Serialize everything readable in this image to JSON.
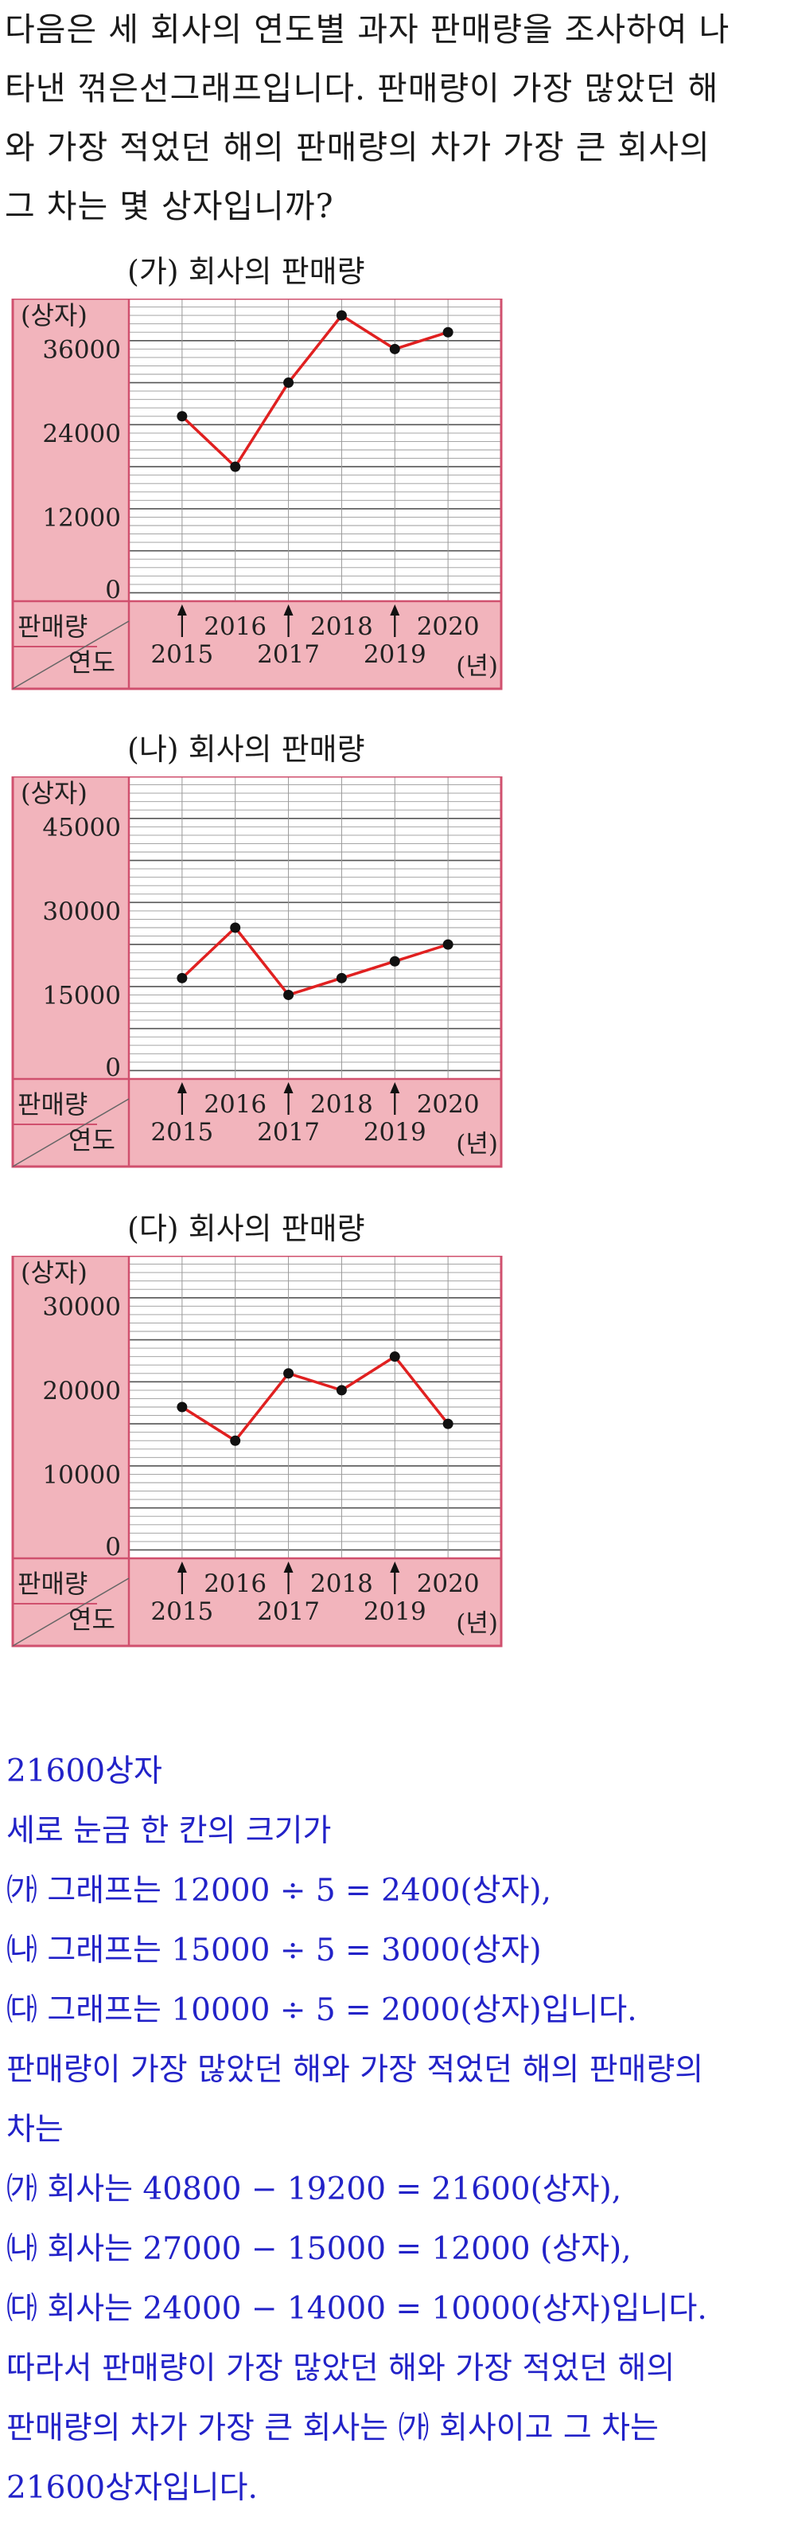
{
  "question": {
    "lines": [
      "다음은 세 회사의 연도별 과자 판매량을 조사하여 나",
      "타낸 꺾은선그래프입니다. 판매량이 가장 많았던 해",
      "와 가장 적었던 해의 판매량의 차가 가장 큰 회사의",
      "그 차는 몇 상자입니까?"
    ]
  },
  "colors": {
    "panel": "#f2b4bc",
    "border": "#d0506e",
    "line": "#e02020",
    "point": "#111111",
    "answer": "#2222c8"
  },
  "chart_data": [
    {
      "type": "line",
      "title": "(가) 회사의 판매량",
      "ylabel": "(상자)",
      "y_ticks": [
        "36000",
        "24000",
        "12000",
        "0"
      ],
      "x_ticks_upper": [
        "2016",
        "2018",
        "2020"
      ],
      "x_ticks_lower": [
        "2015",
        "2017",
        "2019"
      ],
      "row_header": "판매량",
      "col_header": "연도",
      "unit": "(년)",
      "ylim": [
        0,
        43200
      ],
      "x": [
        2015,
        2016,
        2017,
        2018,
        2019,
        2020
      ],
      "values": [
        26400,
        19200,
        31200,
        40800,
        36000,
        38400
      ]
    },
    {
      "type": "line",
      "title": "(나) 회사의 판매량",
      "ylabel": "(상자)",
      "y_ticks": [
        "45000",
        "30000",
        "15000",
        "0"
      ],
      "x_ticks_upper": [
        "2016",
        "2018",
        "2020"
      ],
      "x_ticks_lower": [
        "2015",
        "2017",
        "2019"
      ],
      "row_header": "판매량",
      "col_header": "연도",
      "unit": "(년)",
      "ylim": [
        0,
        54000
      ],
      "x": [
        2015,
        2016,
        2017,
        2018,
        2019,
        2020
      ],
      "values": [
        18000,
        27000,
        15000,
        18000,
        21000,
        24000
      ]
    },
    {
      "type": "line",
      "title": "(다) 회사의 판매량",
      "ylabel": "(상자)",
      "y_ticks": [
        "30000",
        "20000",
        "10000",
        "0"
      ],
      "x_ticks_upper": [
        "2016",
        "2018",
        "2020"
      ],
      "x_ticks_lower": [
        "2015",
        "2017",
        "2019"
      ],
      "row_header": "판매량",
      "col_header": "연도",
      "unit": "(년)",
      "ylim": [
        0,
        36000
      ],
      "x": [
        2015,
        2016,
        2017,
        2018,
        2019,
        2020
      ],
      "values": [
        18000,
        14000,
        22000,
        20000,
        24000,
        16000
      ]
    }
  ],
  "answer": {
    "lines": [
      " 21600상자",
      "세로 눈금 한 칸의 크기가",
      "㈎ 그래프는 12000 ÷ 5 = 2400(상자),",
      "㈏ 그래프는 15000 ÷ 5 = 3000(상자)",
      "㈐ 그래프는 10000 ÷ 5 = 2000(상자)입니다.",
      "판매량이 가장 많았던 해와 가장 적었던 해의 판매량의",
      "차는",
      "㈎ 회사는 40800 − 19200 = 21600(상자),",
      "㈏ 회사는 27000 − 15000 = 12000 (상자),",
      "㈐ 회사는 24000 − 14000 = 10000(상자)입니다.",
      "따라서 판매량이 가장 많았던 해와 가장 적었던 해의",
      "판매량의 차가 가장 큰 회사는 ㈎ 회사이고 그 차는",
      "21600상자입니다."
    ]
  }
}
